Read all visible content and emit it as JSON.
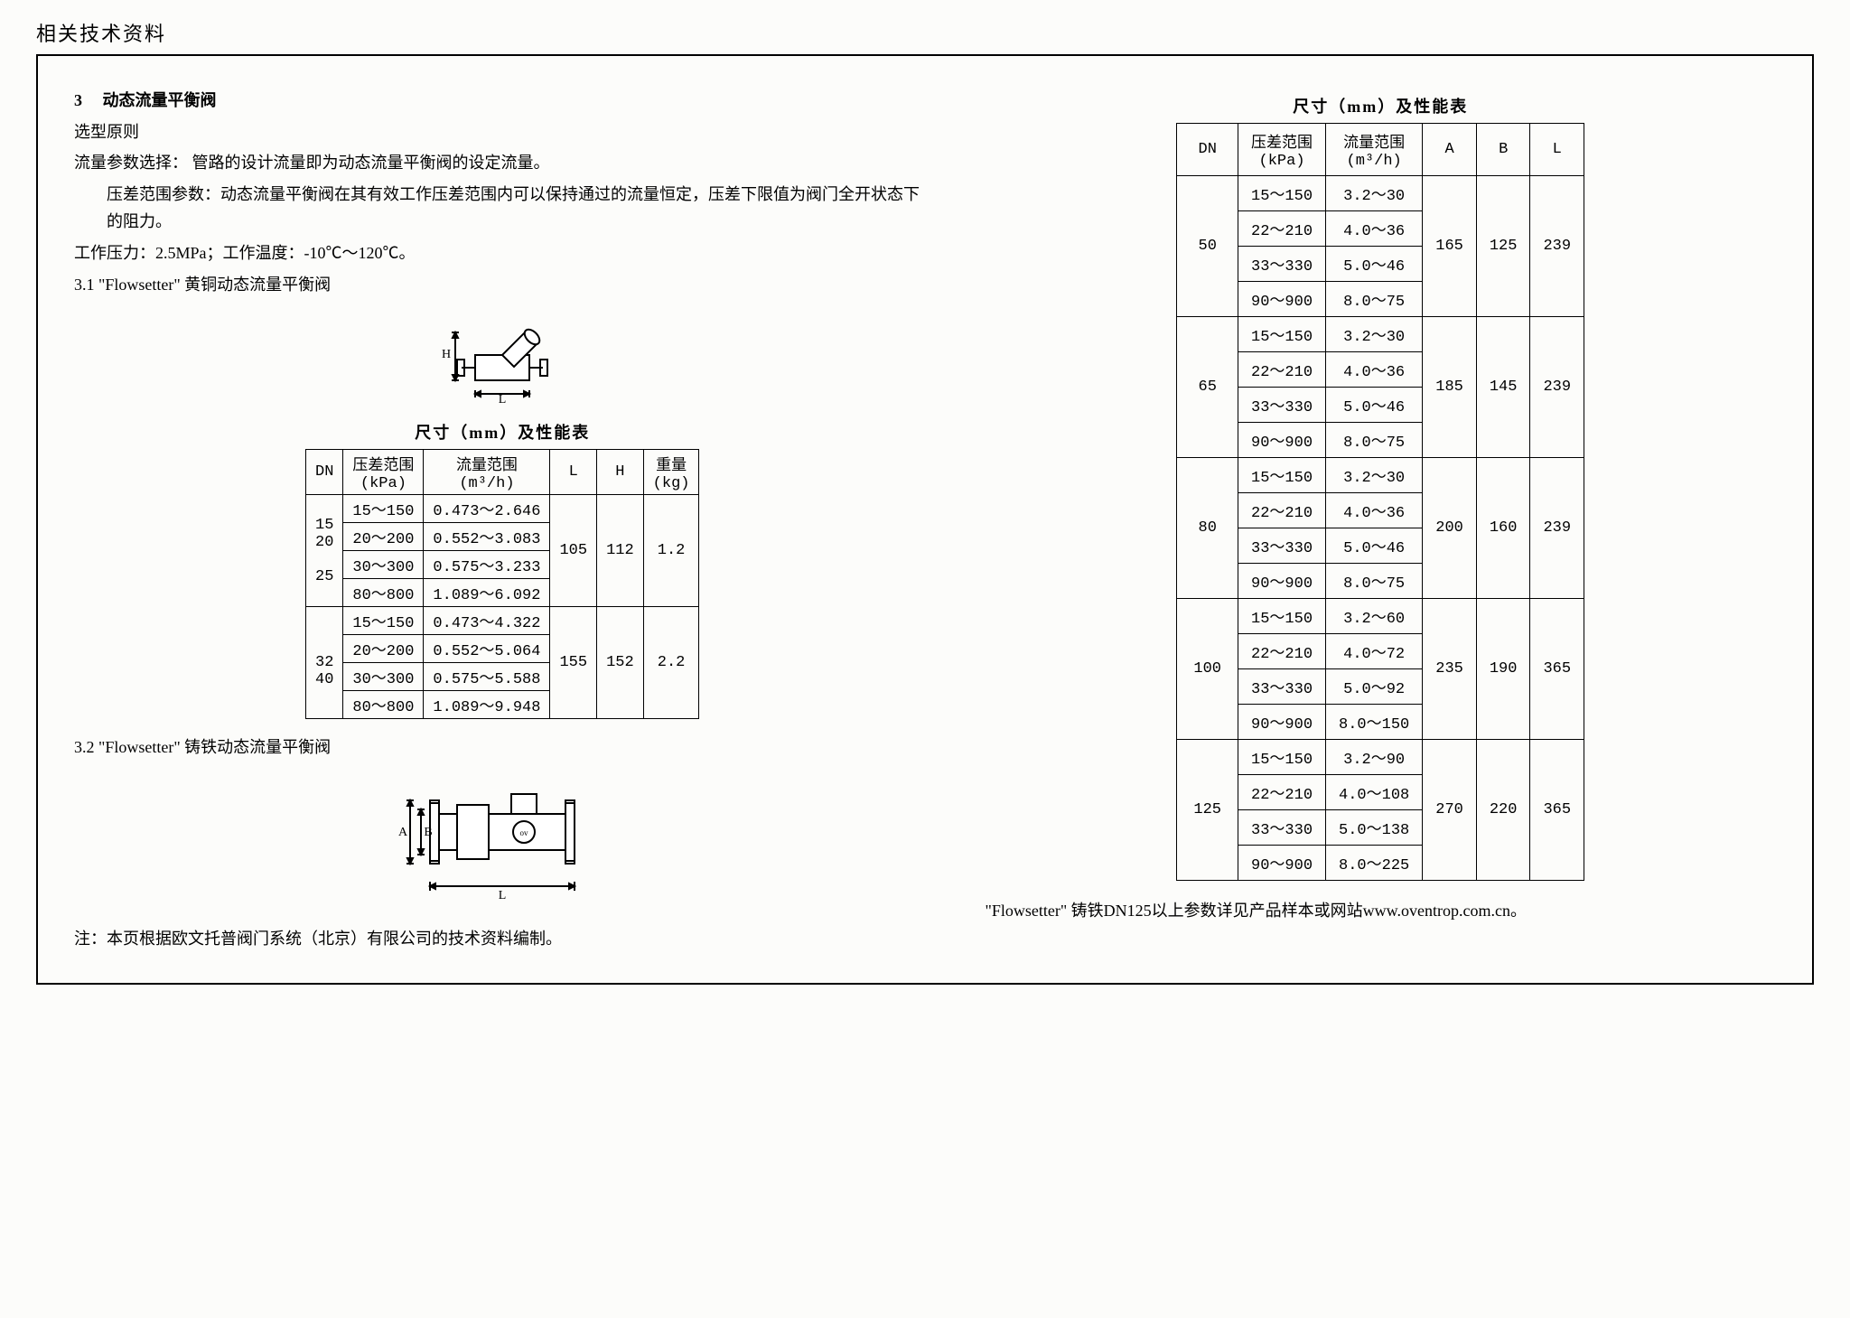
{
  "header": "相关技术资料",
  "section": {
    "num": "3",
    "title": "动态流量平衡阀",
    "sub1": "选型原则",
    "p1": "流量参数选择：  管路的设计流量即为动态流量平衡阀的设定流量。",
    "p2": "压差范围参数：动态流量平衡阀在其有效工作压差范围内可以保持通过的流量恒定，压差下限值为阀门全开状态下的阻力。",
    "p3": "工作压力：2.5MPa；工作温度：-10℃～120℃。",
    "s31": "3.1 \"Flowsetter\" 黄铜动态流量平衡阀",
    "s32": "3.2 \"Flowsetter\" 铸铁动态流量平衡阀",
    "note": "注：本页根据欧文托普阀门系统（北京）有限公司的技术资料编制。",
    "rightNote": "\"Flowsetter\" 铸铁DN125以上参数详见产品样本或网站www.oventrop.com.cn。"
  },
  "tableLeft": {
    "title": "尺寸（mm）及性能表",
    "headers": [
      "DN",
      "压差范围\n(kPa)",
      "流量范围\n(m³/h)",
      "L",
      "H",
      "重量\n(kg)"
    ],
    "groups": [
      {
        "dn": "15\n20\n\n25",
        "rows": [
          [
            "15～150",
            "0.473～2.646"
          ],
          [
            "20～200",
            "0.552～3.083"
          ],
          [
            "30～300",
            "0.575～3.233"
          ],
          [
            "80～800",
            "1.089～6.092"
          ]
        ],
        "L": "105",
        "H": "112",
        "W": "1.2"
      },
      {
        "dn": "\n32\n40",
        "rows": [
          [
            "15～150",
            "0.473～4.322"
          ],
          [
            "20～200",
            "0.552～5.064"
          ],
          [
            "30～300",
            "0.575～5.588"
          ],
          [
            "80～800",
            "1.089～9.948"
          ]
        ],
        "L": "155",
        "H": "152",
        "W": "2.2"
      }
    ]
  },
  "tableRight": {
    "title": "尺寸（mm）及性能表",
    "headers": [
      "DN",
      "压差范围\n(kPa)",
      "流量范围\n(m³/h)",
      "A",
      "B",
      "L"
    ],
    "groups": [
      {
        "dn": "50",
        "rows": [
          [
            "15～150",
            "3.2～30"
          ],
          [
            "22～210",
            "4.0～36"
          ],
          [
            "33～330",
            "5.0～46"
          ],
          [
            "90～900",
            "8.0～75"
          ]
        ],
        "A": "165",
        "B": "125",
        "L": "239"
      },
      {
        "dn": "65",
        "rows": [
          [
            "15～150",
            "3.2～30"
          ],
          [
            "22～210",
            "4.0～36"
          ],
          [
            "33～330",
            "5.0～46"
          ],
          [
            "90～900",
            "8.0～75"
          ]
        ],
        "A": "185",
        "B": "145",
        "L": "239"
      },
      {
        "dn": "80",
        "rows": [
          [
            "15～150",
            "3.2～30"
          ],
          [
            "22～210",
            "4.0～36"
          ],
          [
            "33～330",
            "5.0～46"
          ],
          [
            "90～900",
            "8.0～75"
          ]
        ],
        "A": "200",
        "B": "160",
        "L": "239"
      },
      {
        "dn": "100",
        "rows": [
          [
            "15～150",
            "3.2～60"
          ],
          [
            "22～210",
            "4.0～72"
          ],
          [
            "33～330",
            "5.0～92"
          ],
          [
            "90～900",
            "8.0～150"
          ]
        ],
        "A": "235",
        "B": "190",
        "L": "365"
      },
      {
        "dn": "125",
        "rows": [
          [
            "15～150",
            "3.2～90"
          ],
          [
            "22～210",
            "4.0～108"
          ],
          [
            "33～330",
            "5.0～138"
          ],
          [
            "90～900",
            "8.0～225"
          ]
        ],
        "A": "270",
        "B": "220",
        "L": "365"
      }
    ]
  },
  "diag1": {
    "L": "L",
    "H": "H"
  },
  "diag2": {
    "L": "L",
    "A": "A",
    "B": "B"
  }
}
